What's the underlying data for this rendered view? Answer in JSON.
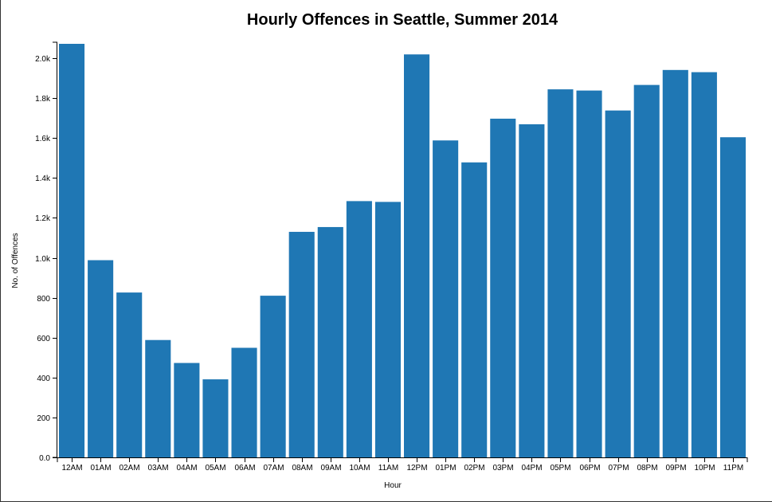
{
  "chart_data": {
    "type": "bar",
    "title": "Hourly Offences in Seattle, Summer 2014",
    "xlabel": "Hour",
    "ylabel": "No. of Offences",
    "categories": [
      "12AM",
      "01AM",
      "02AM",
      "03AM",
      "04AM",
      "05AM",
      "06AM",
      "07AM",
      "08AM",
      "09AM",
      "10AM",
      "11AM",
      "12PM",
      "01PM",
      "02PM",
      "03PM",
      "04PM",
      "05PM",
      "06PM",
      "07PM",
      "08PM",
      "09PM",
      "10PM",
      "11PM"
    ],
    "values": [
      2072,
      988,
      826,
      588,
      473,
      391,
      549,
      810,
      1130,
      1154,
      1284,
      1280,
      2019,
      1588,
      1478,
      1697,
      1669,
      1844,
      1838,
      1738,
      1866,
      1941,
      1930,
      1604
    ],
    "ylim": [
      0,
      2080
    ],
    "yticks": [
      0,
      200,
      400,
      600,
      800,
      1000,
      1200,
      1400,
      1600,
      1800,
      2000
    ],
    "ytick_labels": [
      "0.0",
      "200",
      "400",
      "600",
      "800",
      "1.0k",
      "1.2k",
      "1.4k",
      "1.6k",
      "1.8k",
      "2.0k"
    ],
    "bar_color": "#1f77b4",
    "grid": false,
    "legend": "none"
  }
}
